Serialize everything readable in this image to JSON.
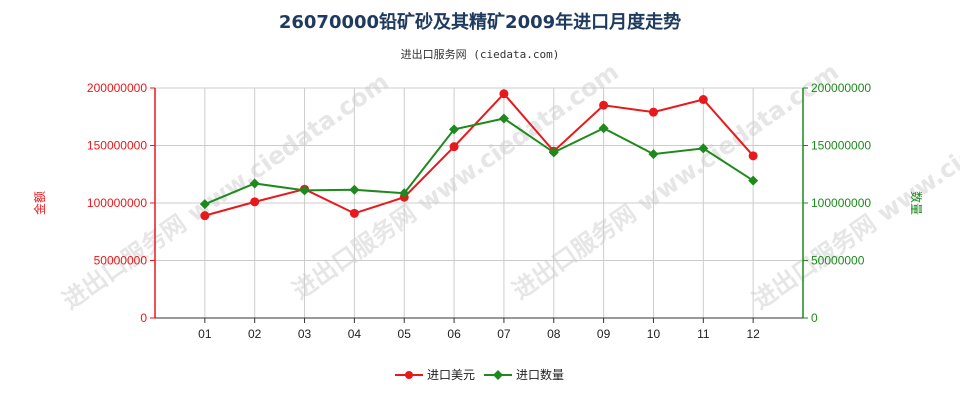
{
  "title": "26070000铅矿砂及其精矿2009年进口月度走势",
  "subtitle": "进出口服务网 (ciedata.com)",
  "watermark": "进出口服务网 www.ciedata.com",
  "chart_data": {
    "type": "line",
    "categories": [
      "01",
      "02",
      "03",
      "04",
      "05",
      "06",
      "07",
      "08",
      "09",
      "10",
      "11",
      "12"
    ],
    "series": [
      {
        "name": "进口美元",
        "axis": "left",
        "color": "#e8191c",
        "values": [
          89000000,
          101000000,
          112000000,
          91000000,
          105000000,
          149000000,
          195000000,
          145000000,
          185000000,
          179000000,
          190000000,
          141000000
        ]
      },
      {
        "name": "进口数量",
        "axis": "right",
        "color": "#1e8a1e",
        "values": [
          99000000,
          117000000,
          111000000,
          111500000,
          108500000,
          164000000,
          173500000,
          144000000,
          165000000,
          142500000,
          147500000,
          119500000
        ]
      }
    ],
    "ylabel_left": "金额",
    "ylabel_right": "数量",
    "ylim": [
      0,
      200000000
    ],
    "yticks": [
      "0",
      "50000000",
      "100000000",
      "150000000",
      "200000000"
    ],
    "left_axis_color": "#e8191c",
    "right_axis_color": "#1e8a1e",
    "grid": true,
    "legend_position": "bottom-center"
  }
}
